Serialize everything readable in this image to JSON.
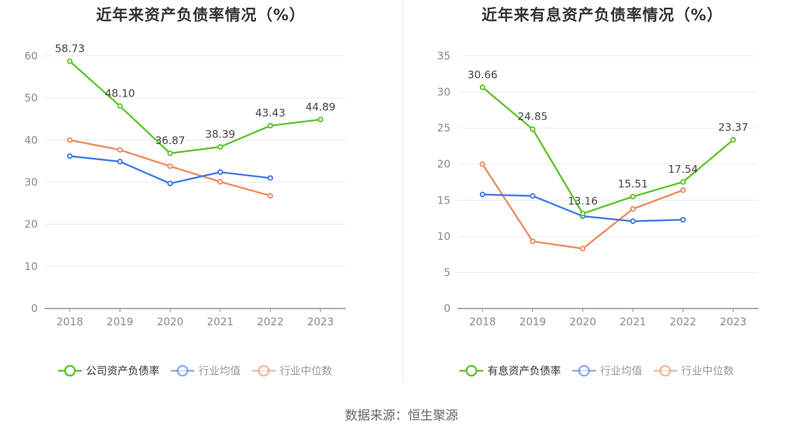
{
  "source": "数据来源：恒生聚源",
  "chart_data": [
    {
      "type": "line",
      "title": "近年来资产负债率情况（%）",
      "xlabel": "",
      "ylabel": "",
      "categories": [
        "2018",
        "2019",
        "2020",
        "2021",
        "2022",
        "2023"
      ],
      "ylim": [
        0,
        60
      ],
      "yticks": [
        0,
        10,
        20,
        30,
        40,
        50,
        60
      ],
      "grid": true,
      "legend_position": "bottom",
      "series": [
        {
          "name": "公司资产负债率",
          "color": "#5cc32a",
          "values": [
            58.73,
            48.1,
            36.87,
            38.39,
            43.43,
            44.89
          ],
          "labels": [
            "58.73",
            "48.10",
            "36.87",
            "38.39",
            "43.43",
            "44.89"
          ]
        },
        {
          "name": "行业均值",
          "color": "#3e78e6",
          "values": [
            36.2,
            34.9,
            29.7,
            32.4,
            31.0,
            null
          ]
        },
        {
          "name": "行业中位数",
          "color": "#f0895b",
          "values": [
            40.0,
            37.7,
            33.8,
            30.1,
            26.8,
            null
          ]
        }
      ]
    },
    {
      "type": "line",
      "title": "近年来有息资产负债率情况（%）",
      "xlabel": "",
      "ylabel": "",
      "categories": [
        "2018",
        "2019",
        "2020",
        "2021",
        "2022",
        "2023"
      ],
      "ylim": [
        0,
        35
      ],
      "yticks": [
        0,
        5,
        10,
        15,
        20,
        25,
        30,
        35
      ],
      "grid": true,
      "legend_position": "bottom",
      "series": [
        {
          "name": "有息资产负债率",
          "color": "#5cc32a",
          "values": [
            30.66,
            24.85,
            13.16,
            15.51,
            17.54,
            23.37
          ],
          "labels": [
            "30.66",
            "24.85",
            "13.16",
            "15.51",
            "17.54",
            "23.37"
          ]
        },
        {
          "name": "行业均值",
          "color": "#3e78e6",
          "values": [
            15.8,
            15.6,
            12.8,
            12.1,
            12.3,
            null
          ]
        },
        {
          "name": "行业中位数",
          "color": "#f0895b",
          "values": [
            20.0,
            9.3,
            8.3,
            13.8,
            16.4,
            null
          ]
        }
      ]
    }
  ]
}
